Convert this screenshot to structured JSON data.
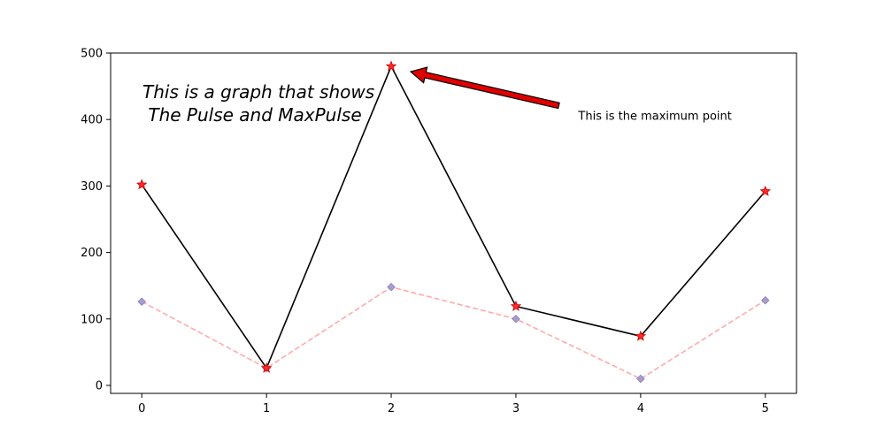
{
  "chart_data": {
    "type": "line",
    "title_lines": [
      "This is a graph that shows",
      " The Pulse and MaxPulse"
    ],
    "xlabel": "",
    "ylabel": "",
    "x": [
      0,
      1,
      2,
      3,
      4,
      5
    ],
    "xlim": [
      -0.25,
      5.25
    ],
    "ylim": [
      -12,
      500
    ],
    "xticks": [
      "0",
      "1",
      "2",
      "3",
      "4",
      "5"
    ],
    "yticks": [
      "0",
      "100",
      "200",
      "300",
      "400",
      "500"
    ],
    "grid": false,
    "series": [
      {
        "values": [
          302,
          26,
          480,
          119,
          74,
          292
        ],
        "line_color": "#000000",
        "line_style": "solid",
        "marker": "star",
        "marker_color": "#ff2a2a"
      },
      {
        "values": [
          126,
          26,
          148,
          100,
          10,
          128
        ],
        "line_color": "#ffaaaa",
        "line_style": "dashed",
        "marker": "diamond",
        "marker_color": "#a89ccc"
      }
    ],
    "annotation": {
      "text": "This is the maximum point",
      "point": [
        2,
        480
      ],
      "text_position": [
        3.5,
        405
      ],
      "arrow_color": "#e00000"
    }
  }
}
